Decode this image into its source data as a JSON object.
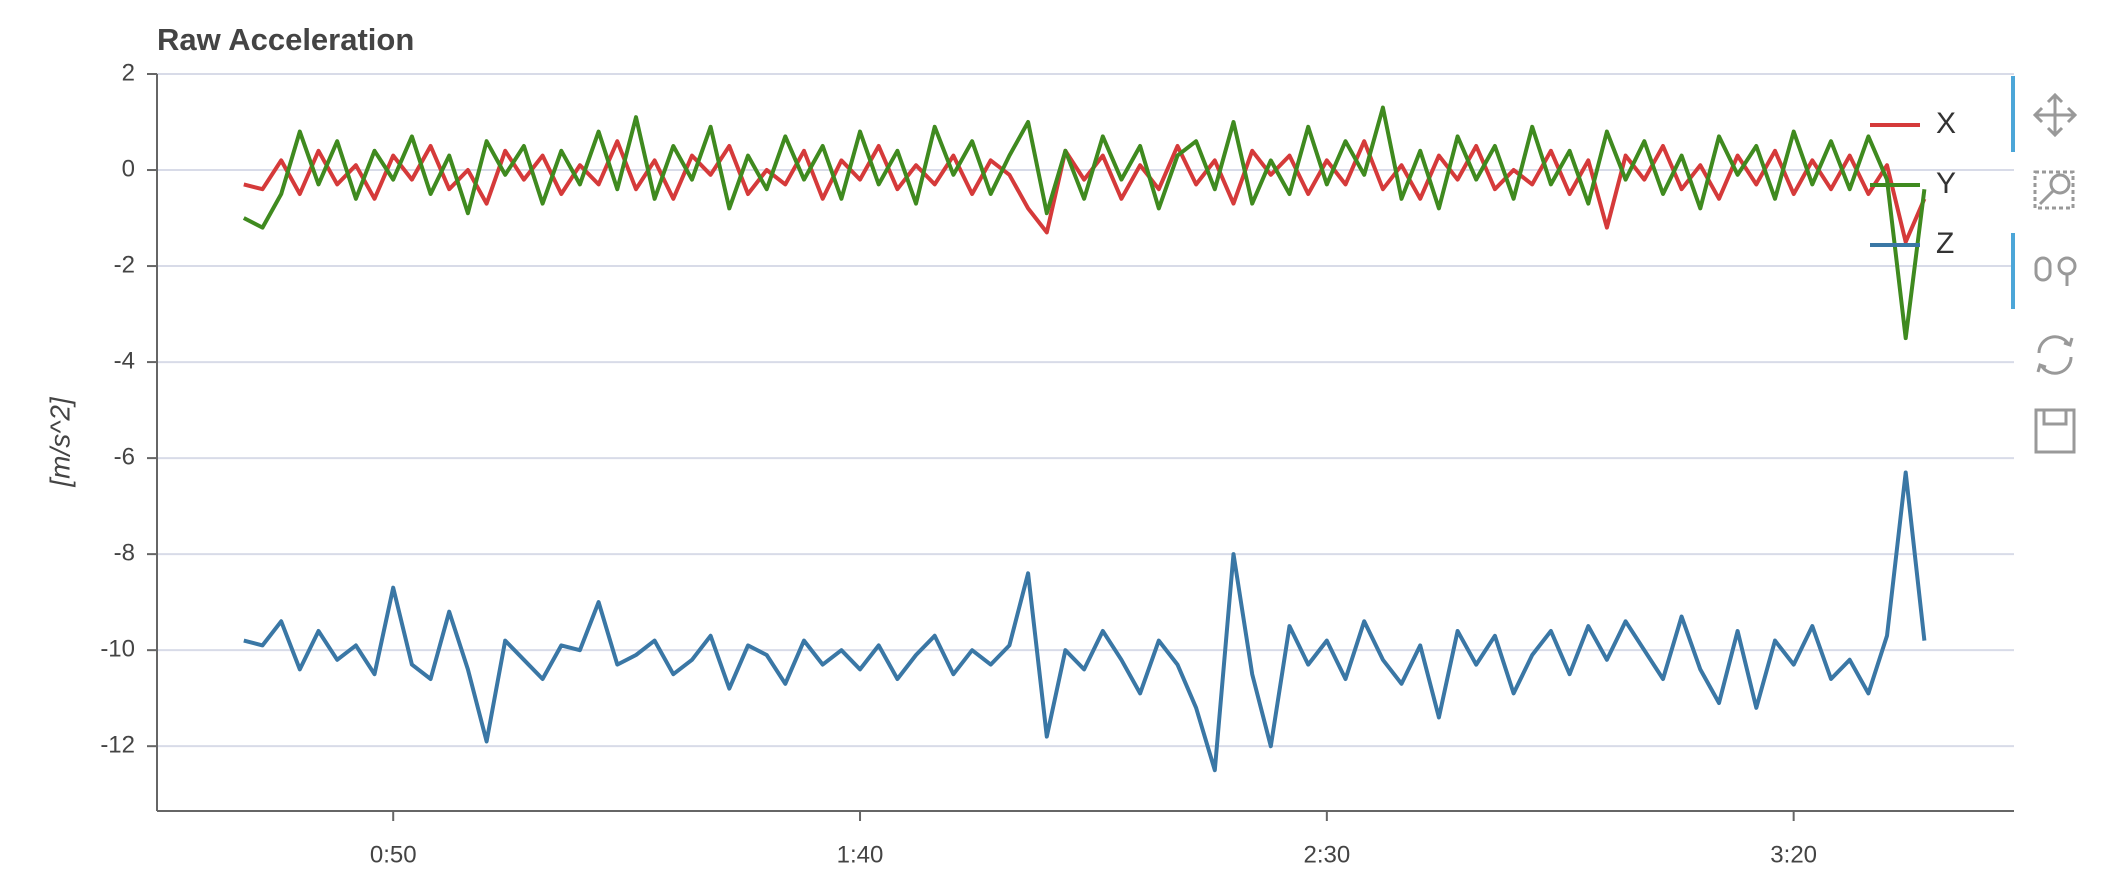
{
  "chart_data": {
    "type": "line",
    "title": "Raw Acceleration",
    "y_label": "[m/s^2]",
    "x": [
      34,
      36,
      38,
      40,
      42,
      44,
      46,
      48,
      50,
      52,
      54,
      56,
      58,
      60,
      62,
      64,
      66,
      68,
      70,
      72,
      74,
      76,
      78,
      80,
      82,
      84,
      86,
      88,
      90,
      92,
      94,
      96,
      98,
      100,
      102,
      104,
      106,
      108,
      110,
      112,
      114,
      116,
      118,
      120,
      122,
      124,
      126,
      128,
      130,
      132,
      134,
      136,
      138,
      140,
      142,
      144,
      146,
      148,
      150,
      152,
      154,
      156,
      158,
      160,
      162,
      164,
      166,
      168,
      170,
      172,
      174,
      176,
      178,
      180,
      182,
      184,
      186,
      188,
      190,
      192,
      194,
      196,
      198,
      200,
      202,
      204,
      206,
      208,
      210,
      212,
      214
    ],
    "series": [
      {
        "name": "X",
        "color": "#d53a3a",
        "values": [
          -0.3,
          -0.4,
          0.2,
          -0.5,
          0.4,
          -0.3,
          0.1,
          -0.6,
          0.3,
          -0.2,
          0.5,
          -0.4,
          0.0,
          -0.7,
          0.4,
          -0.2,
          0.3,
          -0.5,
          0.1,
          -0.3,
          0.6,
          -0.4,
          0.2,
          -0.6,
          0.3,
          -0.1,
          0.5,
          -0.5,
          0.0,
          -0.3,
          0.4,
          -0.6,
          0.2,
          -0.2,
          0.5,
          -0.4,
          0.1,
          -0.3,
          0.3,
          -0.5,
          0.2,
          -0.1,
          -0.8,
          -1.3,
          0.4,
          -0.2,
          0.3,
          -0.6,
          0.1,
          -0.4,
          0.5,
          -0.3,
          0.2,
          -0.7,
          0.4,
          -0.1,
          0.3,
          -0.5,
          0.2,
          -0.3,
          0.6,
          -0.4,
          0.1,
          -0.6,
          0.3,
          -0.2,
          0.5,
          -0.4,
          0.0,
          -0.3,
          0.4,
          -0.5,
          0.2,
          -1.2,
          0.3,
          -0.2,
          0.5,
          -0.4,
          0.1,
          -0.6,
          0.3,
          -0.3,
          0.4,
          -0.5,
          0.2,
          -0.4,
          0.3,
          -0.5,
          0.1,
          -1.5,
          -0.6
        ]
      },
      {
        "name": "Y",
        "color": "#3f8a1f",
        "values": [
          -1.0,
          -1.2,
          -0.5,
          0.8,
          -0.3,
          0.6,
          -0.6,
          0.4,
          -0.2,
          0.7,
          -0.5,
          0.3,
          -0.9,
          0.6,
          -0.1,
          0.5,
          -0.7,
          0.4,
          -0.3,
          0.8,
          -0.4,
          1.1,
          -0.6,
          0.5,
          -0.2,
          0.9,
          -0.8,
          0.3,
          -0.4,
          0.7,
          -0.2,
          0.5,
          -0.6,
          0.8,
          -0.3,
          0.4,
          -0.7,
          0.9,
          -0.1,
          0.6,
          -0.5,
          0.3,
          1.0,
          -0.9,
          0.4,
          -0.6,
          0.7,
          -0.2,
          0.5,
          -0.8,
          0.3,
          0.6,
          -0.4,
          1.0,
          -0.7,
          0.2,
          -0.5,
          0.9,
          -0.3,
          0.6,
          -0.1,
          1.3,
          -0.6,
          0.4,
          -0.8,
          0.7,
          -0.2,
          0.5,
          -0.6,
          0.9,
          -0.3,
          0.4,
          -0.7,
          0.8,
          -0.2,
          0.6,
          -0.5,
          0.3,
          -0.8,
          0.7,
          -0.1,
          0.5,
          -0.6,
          0.8,
          -0.3,
          0.6,
          -0.4,
          0.7,
          -0.2,
          -3.5,
          -0.4
        ]
      },
      {
        "name": "Z",
        "color": "#3a77a5",
        "values": [
          -9.8,
          -9.9,
          -9.4,
          -10.4,
          -9.6,
          -10.2,
          -9.9,
          -10.5,
          -8.7,
          -10.3,
          -10.6,
          -9.2,
          -10.4,
          -11.9,
          -9.8,
          -10.2,
          -10.6,
          -9.9,
          -10.0,
          -9.0,
          -10.3,
          -10.1,
          -9.8,
          -10.5,
          -10.2,
          -9.7,
          -10.8,
          -9.9,
          -10.1,
          -10.7,
          -9.8,
          -10.3,
          -10.0,
          -10.4,
          -9.9,
          -10.6,
          -10.1,
          -9.7,
          -10.5,
          -10.0,
          -10.3,
          -9.9,
          -8.4,
          -11.8,
          -10.0,
          -10.4,
          -9.6,
          -10.2,
          -10.9,
          -9.8,
          -10.3,
          -11.2,
          -12.5,
          -8.0,
          -10.5,
          -12.0,
          -9.5,
          -10.3,
          -9.8,
          -10.6,
          -9.4,
          -10.2,
          -10.7,
          -9.9,
          -11.4,
          -9.6,
          -10.3,
          -9.7,
          -10.9,
          -10.1,
          -9.6,
          -10.5,
          -9.5,
          -10.2,
          -9.4,
          -10.0,
          -10.6,
          -9.3,
          -10.4,
          -11.1,
          -9.6,
          -11.2,
          -9.8,
          -10.3,
          -9.5,
          -10.6,
          -10.2,
          -10.9,
          -9.7,
          -6.3,
          -9.8
        ]
      }
    ],
    "xlim": [
      24.7,
      223.6
    ],
    "xticks": [
      {
        "value": 50,
        "label": "0:50"
      },
      {
        "value": 100,
        "label": "1:40"
      },
      {
        "value": 150,
        "label": "2:30"
      },
      {
        "value": 200,
        "label": "3:20"
      }
    ],
    "ylim": [
      -13.35,
      2
    ],
    "yticks": [
      2,
      0,
      -2,
      -4,
      -6,
      -8,
      -10,
      -12
    ],
    "grid": true,
    "legend": "top-right"
  }
}
